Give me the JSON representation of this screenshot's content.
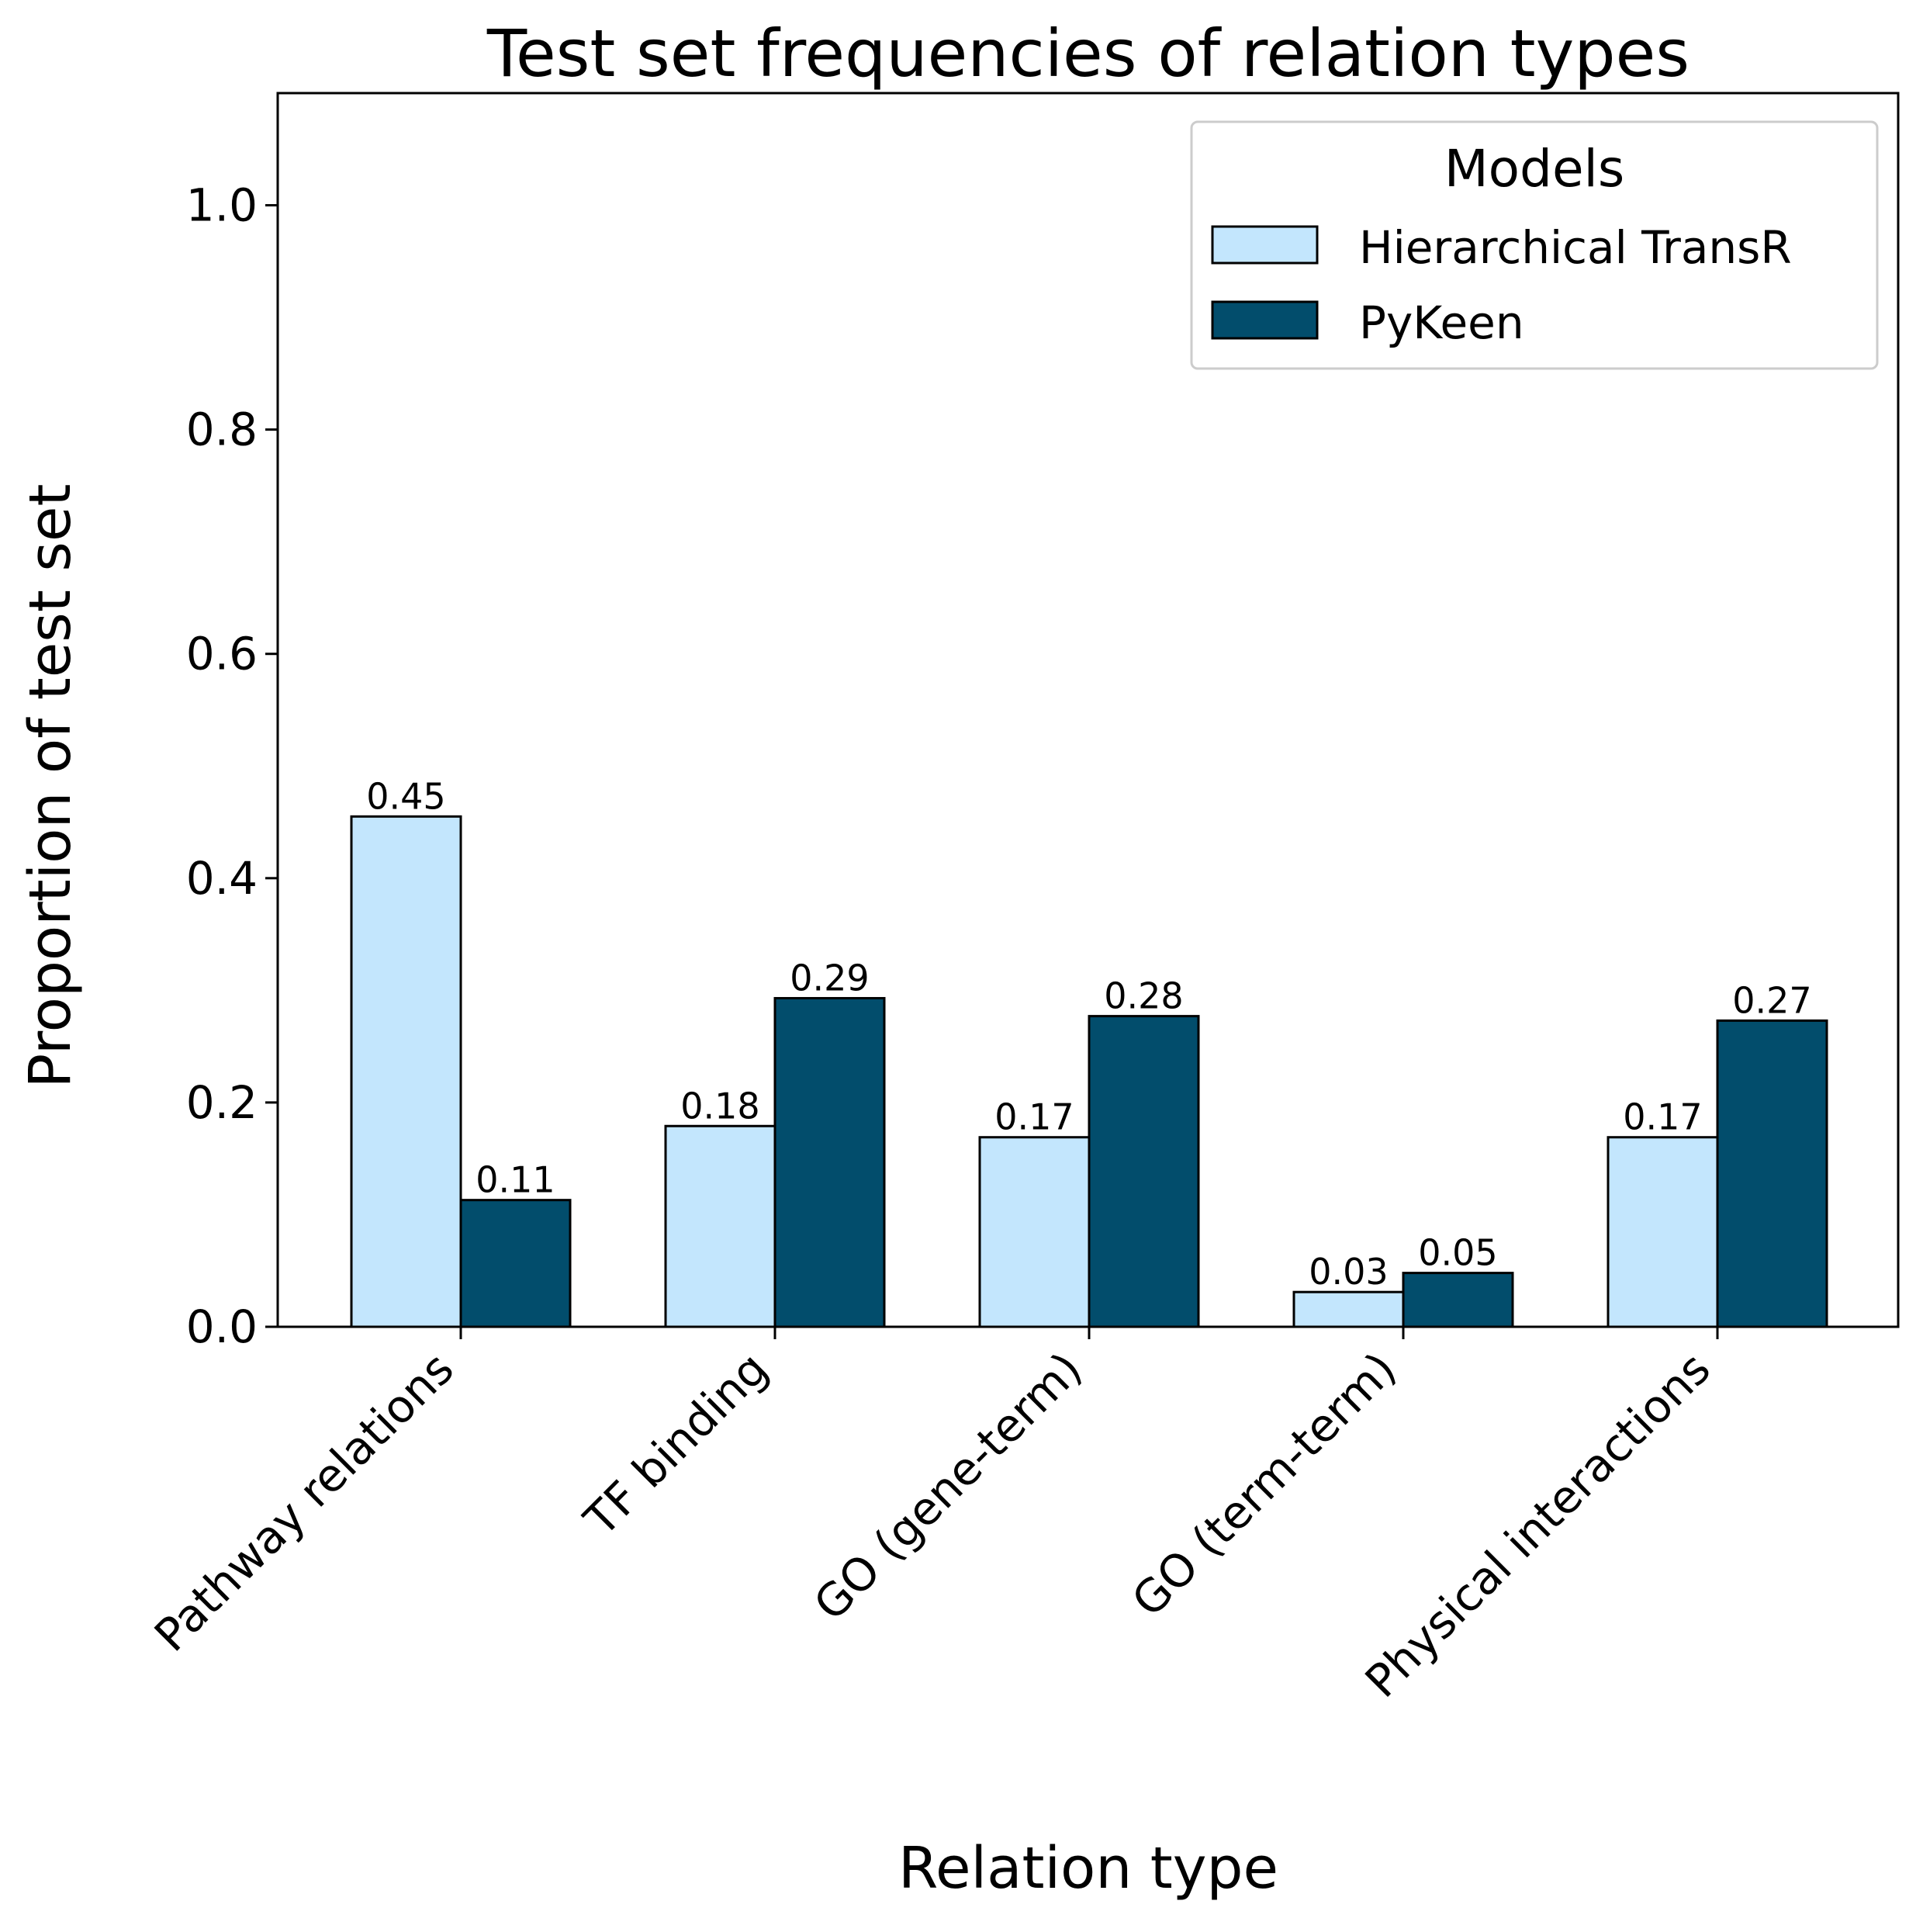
{
  "chart_data": {
    "type": "bar",
    "title": "Test set frequencies of relation types",
    "xlabel": "Relation type",
    "ylabel": "Proportion of test set",
    "ylim": [
      0,
      1.1
    ],
    "yticks": [
      0.0,
      0.2,
      0.4,
      0.6,
      0.8,
      1.0
    ],
    "ytick_labels": [
      "0.0",
      "0.2",
      "0.4",
      "0.6",
      "0.8",
      "1.0"
    ],
    "categories": [
      "Pathway relations",
      "TF binding",
      "GO (gene-term)",
      "GO (term-term)",
      "Physical interactions"
    ],
    "series": [
      {
        "name": "Hierarchical TransR",
        "color": "#c3e6fd",
        "values": [
          0.455,
          0.179,
          0.169,
          0.031,
          0.169
        ],
        "labels": [
          "0.45",
          "0.18",
          "0.17",
          "0.03",
          "0.17"
        ]
      },
      {
        "name": "PyKeen",
        "color": "#024d6c",
        "values": [
          0.113,
          0.293,
          0.277,
          0.048,
          0.273
        ],
        "labels": [
          "0.11",
          "0.29",
          "0.28",
          "0.05",
          "0.27"
        ]
      }
    ],
    "legend": {
      "title": "Models",
      "position": "upper right"
    },
    "grid": false
  }
}
